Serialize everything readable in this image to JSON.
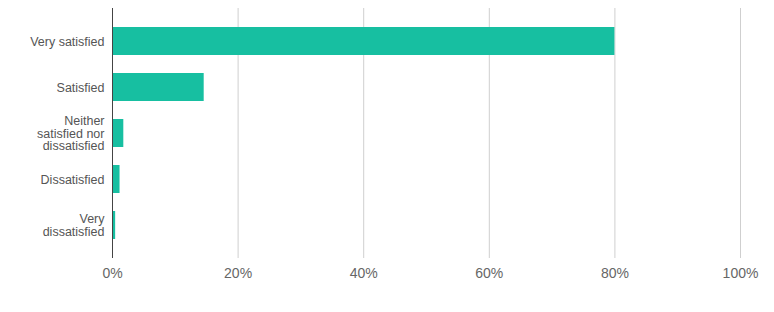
{
  "chart_data": {
    "type": "bar",
    "orientation": "horizontal",
    "categories": [
      "Very satisfied",
      "Satisfied",
      "Neither satisfied nor dissatisfied",
      "Dissatisfied",
      "Very dissatisfied"
    ],
    "values": [
      80,
      14.6,
      1.8,
      1.2,
      0.5
    ],
    "color": "#17bfa1",
    "xlim": [
      0,
      100
    ],
    "xticks": [
      {
        "value": 0,
        "label": "0%"
      },
      {
        "value": 20,
        "label": "20%"
      },
      {
        "value": 40,
        "label": "40%"
      },
      {
        "value": 60,
        "label": "60%"
      },
      {
        "value": 80,
        "label": "80%"
      },
      {
        "value": 100,
        "label": "100%"
      }
    ],
    "grid": true
  }
}
